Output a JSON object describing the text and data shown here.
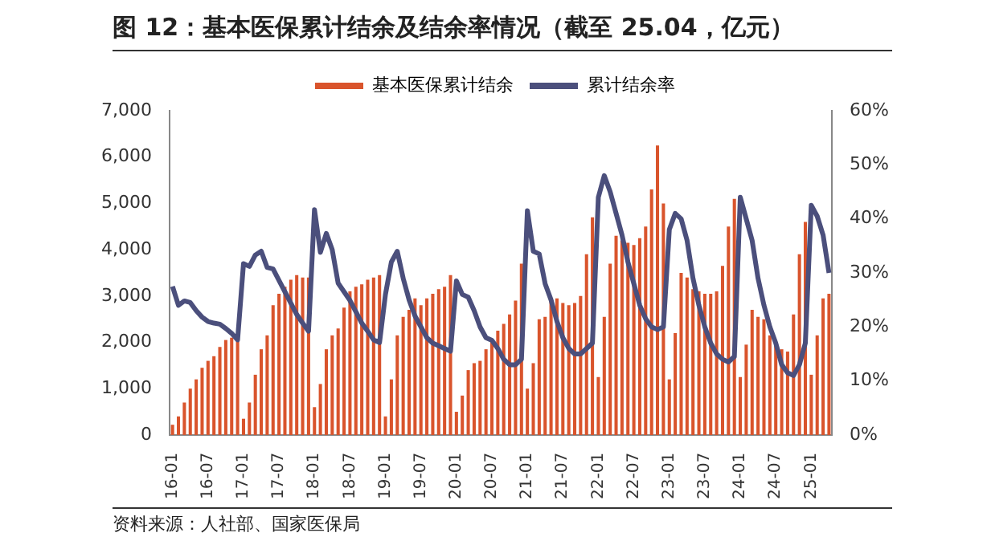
{
  "chart_data": {
    "type": "bar",
    "title": "图 12：基本医保累计结余及结余率情况（截至 25.04，亿元）",
    "annotations": [
      "资料来源：人社部、国家医保局"
    ],
    "categories": [
      "16-01",
      null,
      null,
      null,
      null,
      null,
      "16-07",
      null,
      null,
      null,
      null,
      null,
      "17-01",
      null,
      null,
      null,
      null,
      null,
      "17-07",
      null,
      null,
      null,
      null,
      null,
      "18-01",
      null,
      null,
      null,
      null,
      null,
      "18-07",
      null,
      null,
      null,
      null,
      null,
      "19-01",
      null,
      null,
      null,
      null,
      null,
      "19-07",
      null,
      null,
      null,
      null,
      null,
      "20-01",
      null,
      null,
      null,
      null,
      null,
      "20-07",
      null,
      null,
      null,
      null,
      null,
      "21-01",
      null,
      null,
      null,
      null,
      null,
      "21-07",
      null,
      null,
      null,
      null,
      null,
      "22-01",
      null,
      null,
      null,
      null,
      null,
      "22-07",
      null,
      null,
      null,
      null,
      null,
      "23-01",
      null,
      null,
      null,
      null,
      null,
      "23-07",
      null,
      null,
      null,
      null,
      null,
      "24-01",
      null,
      null,
      null,
      null,
      null,
      "24-07",
      null,
      null,
      null,
      null,
      null,
      "25-01",
      null,
      null,
      null
    ],
    "series": [
      {
        "name": "基本医保累计结余",
        "color": "#d9542c",
        "values": [
          220,
          400,
          700,
          1000,
          1200,
          1450,
          1600,
          1700,
          1900,
          2050,
          2100,
          2050,
          350,
          700,
          1300,
          1850,
          2150,
          2800,
          3050,
          3200,
          3350,
          3450,
          3400,
          3400,
          600,
          1100,
          1850,
          2150,
          2300,
          2750,
          3100,
          3200,
          3250,
          3350,
          3400,
          3450,
          400,
          1200,
          2150,
          2550,
          2700,
          2950,
          2800,
          2950,
          3050,
          3150,
          3200,
          3450,
          500,
          850,
          1400,
          1550,
          1600,
          1850,
          2050,
          2250,
          2400,
          2600,
          2900,
          3700,
          1000,
          1550,
          2500,
          2550,
          2900,
          2950,
          2850,
          2800,
          2850,
          3000,
          3900,
          4700,
          1250,
          2550,
          3700,
          4300,
          4200,
          4150,
          4100,
          4250,
          4500,
          5300,
          6250,
          5000,
          1200,
          2200,
          3500,
          3400,
          3150,
          3100,
          3050,
          3050,
          3100,
          3650,
          4500,
          5100,
          1250,
          1950,
          2700,
          2550,
          2500,
          2150,
          1950,
          1850,
          1800,
          2600,
          3900,
          4600,
          1300,
          2150,
          2950,
          3050
        ]
      },
      {
        "name": "累计结余率",
        "type": "line",
        "axis": "y2",
        "color": "#4b4f7c",
        "values": [
          27.5,
          24,
          24.8,
          24.5,
          23,
          21.8,
          21,
          20.7,
          20.5,
          19.7,
          18.8,
          17.6,
          31.7,
          31.2,
          33.3,
          34,
          31,
          30.7,
          28.6,
          26.5,
          24.4,
          22.3,
          20.7,
          19.2,
          41.7,
          33.8,
          37.3,
          34.3,
          28.1,
          26.5,
          24.9,
          22.8,
          20.7,
          19.2,
          17.6,
          17.1,
          26,
          32,
          34,
          29,
          25,
          22,
          20,
          18,
          17,
          16.5,
          16,
          15.5,
          28.5,
          26,
          25.5,
          23,
          20,
          18,
          17.5,
          16,
          14,
          13,
          13,
          14,
          41.5,
          34,
          33.5,
          28,
          25,
          21,
          18,
          16,
          15,
          15,
          16,
          17,
          44,
          48,
          45,
          41,
          37,
          32,
          28,
          24,
          21.5,
          20,
          19.5,
          20,
          38,
          41,
          40,
          36,
          29,
          24,
          20,
          17,
          15,
          14,
          13.5,
          14.5,
          44,
          40,
          36,
          29,
          24,
          20,
          17,
          13,
          11.5,
          11,
          13,
          17,
          42.5,
          40.5,
          37,
          30
        ]
      }
    ],
    "ylim": [
      0,
      7000
    ],
    "yticks": [
      {
        "value": 0,
        "label": "0"
      },
      {
        "value": 1000,
        "label": "1,000"
      },
      {
        "value": 2000,
        "label": "2,000"
      },
      {
        "value": 3000,
        "label": "3,000"
      },
      {
        "value": 4000,
        "label": "4,000"
      },
      {
        "value": 5000,
        "label": "5,000"
      },
      {
        "value": 6000,
        "label": "6,000"
      },
      {
        "value": 7000,
        "label": "7,000"
      }
    ],
    "y2lim": [
      0,
      60
    ],
    "y2ticks": [
      {
        "value": 0,
        "label": "0%"
      },
      {
        "value": 10,
        "label": "10%"
      },
      {
        "value": 20,
        "label": "20%"
      },
      {
        "value": 30,
        "label": "30%"
      },
      {
        "value": 40,
        "label": "40%"
      },
      {
        "value": 50,
        "label": "50%"
      },
      {
        "value": 60,
        "label": "60%"
      }
    ],
    "grid": false,
    "legend": "top",
    "marker": "none",
    "line_style": "solid"
  }
}
